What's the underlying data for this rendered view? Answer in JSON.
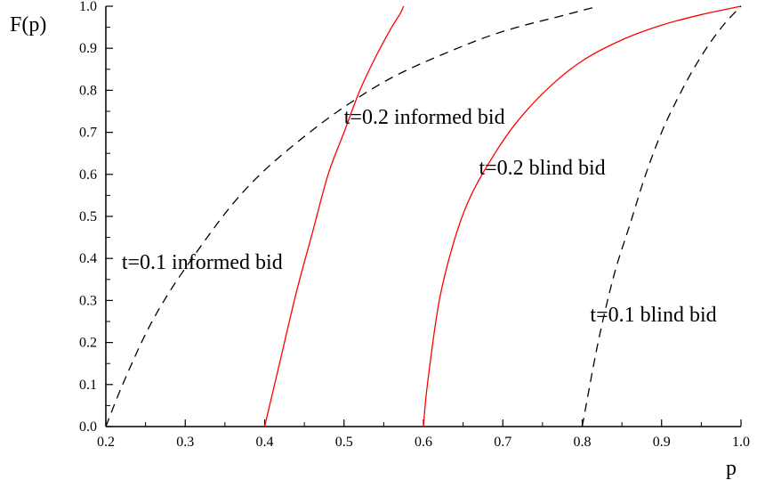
{
  "chart_data": {
    "type": "line",
    "title": "",
    "xlabel": "p",
    "ylabel": "F(p)",
    "xlim": [
      0.2,
      1.0
    ],
    "ylim": [
      0.0,
      1.0
    ],
    "x_ticks": [
      "0.2",
      "0.3",
      "0.4",
      "0.5",
      "0.6",
      "0.7",
      "0.8",
      "0.9",
      "1.0"
    ],
    "y_ticks": [
      "0.0",
      "0.1",
      "0.2",
      "0.3",
      "0.4",
      "0.5",
      "0.6",
      "0.7",
      "0.8",
      "0.9",
      "1.0"
    ],
    "grid": false,
    "legend": "none",
    "series": [
      {
        "color": "#000000",
        "dash": "dashed",
        "points": [
          [
            0.2,
            0.0
          ],
          [
            0.22,
            0.095
          ],
          [
            0.25,
            0.22
          ],
          [
            0.28,
            0.32
          ],
          [
            0.32,
            0.43
          ],
          [
            0.36,
            0.53
          ],
          [
            0.4,
            0.61
          ],
          [
            0.45,
            0.69
          ],
          [
            0.5,
            0.76
          ],
          [
            0.56,
            0.83
          ],
          [
            0.63,
            0.89
          ],
          [
            0.7,
            0.94
          ],
          [
            0.78,
            0.98
          ],
          [
            0.82,
            1.0
          ]
        ]
      },
      {
        "color": "#ff0000",
        "dash": "solid",
        "points": [
          [
            0.4,
            0.0
          ],
          [
            0.42,
            0.16
          ],
          [
            0.44,
            0.32
          ],
          [
            0.46,
            0.46
          ],
          [
            0.48,
            0.6
          ],
          [
            0.5,
            0.7
          ],
          [
            0.52,
            0.8
          ],
          [
            0.54,
            0.88
          ],
          [
            0.56,
            0.95
          ],
          [
            0.57,
            0.98
          ],
          [
            0.575,
            1.0
          ]
        ]
      },
      {
        "color": "#ff0000",
        "dash": "solid",
        "points": [
          [
            0.6,
            0.0
          ],
          [
            0.605,
            0.1
          ],
          [
            0.62,
            0.3
          ],
          [
            0.64,
            0.45
          ],
          [
            0.66,
            0.55
          ],
          [
            0.69,
            0.65
          ],
          [
            0.72,
            0.73
          ],
          [
            0.76,
            0.81
          ],
          [
            0.8,
            0.87
          ],
          [
            0.85,
            0.92
          ],
          [
            0.9,
            0.955
          ],
          [
            0.95,
            0.98
          ],
          [
            1.0,
            1.0
          ]
        ]
      },
      {
        "color": "#000000",
        "dash": "dashed",
        "points": [
          [
            0.8,
            0.0
          ],
          [
            0.82,
            0.2
          ],
          [
            0.84,
            0.36
          ],
          [
            0.86,
            0.48
          ],
          [
            0.88,
            0.6
          ],
          [
            0.9,
            0.7
          ],
          [
            0.92,
            0.78
          ],
          [
            0.94,
            0.85
          ],
          [
            0.96,
            0.91
          ],
          [
            0.98,
            0.96
          ],
          [
            1.0,
            1.0
          ]
        ]
      }
    ],
    "annotations": [
      {
        "text": "t=0.2 informed bid",
        "x": 0.5,
        "y": 0.72
      },
      {
        "text": "t=0.2 blind bid",
        "x": 0.67,
        "y": 0.6
      },
      {
        "text": "t=0.1 informed bid",
        "x": 0.22,
        "y": 0.375
      },
      {
        "text": "t=0.1 blind bid",
        "x": 0.81,
        "y": 0.25
      }
    ]
  }
}
